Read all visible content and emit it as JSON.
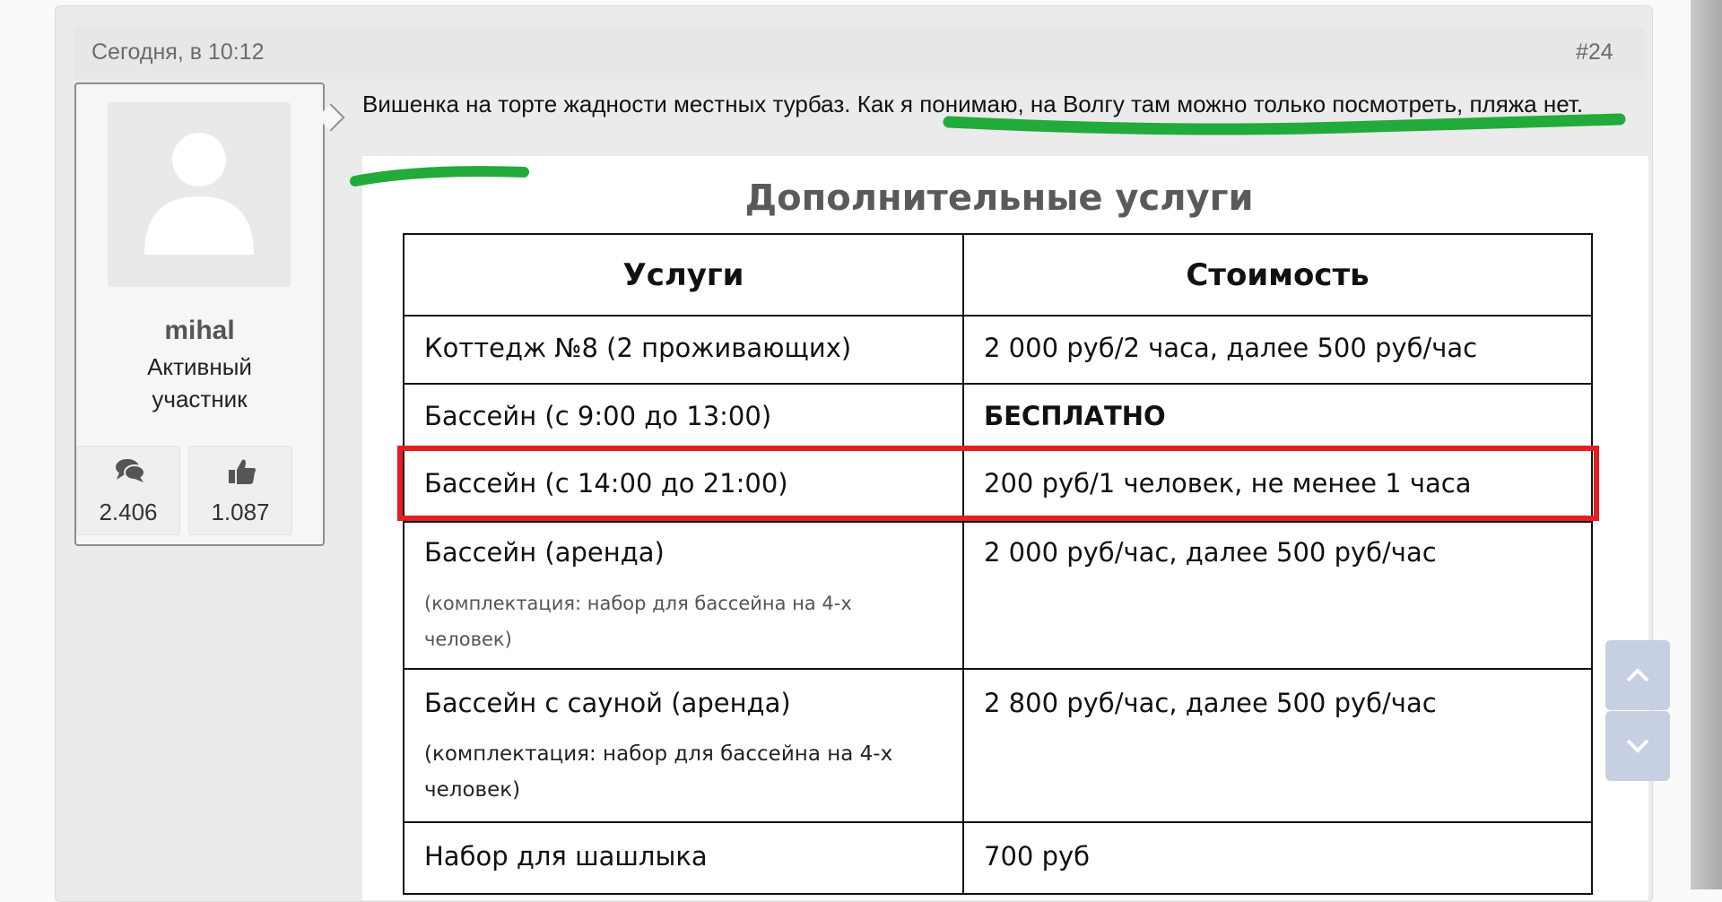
{
  "post": {
    "timestamp": "Сегодня, в 10:12",
    "number": "#24",
    "message": "Вишенка на торте жадности местных турбаз. Как я понимаю, на Волгу там можно только посмотреть, пляжа нет."
  },
  "user": {
    "name": "mihal",
    "role": "Активный участник",
    "messages": "2.406",
    "likes": "1.087"
  },
  "image": {
    "title": "Дополнительные услуги",
    "headers": [
      "Услуги",
      "Стоимость"
    ],
    "rows": [
      {
        "service": "Коттедж №8 (2 проживающих)",
        "note": "",
        "price": "2 000 руб/2 часа, далее 500 руб/час"
      },
      {
        "service": "Бассейн (с 9:00 до 13:00)",
        "note": "",
        "price": "БЕСПЛАТНО"
      },
      {
        "service": "Бассейн (с 14:00 до 21:00)",
        "note": "",
        "price": "200 руб/1 человек, не менее 1 часа"
      },
      {
        "service": "Бассейн (аренда)",
        "note": "(комплектация: набор для бассейна на 4-х человек)",
        "price": "2 000 руб/час, далее 500 руб/час"
      },
      {
        "service": "Бассейн с сауной (аренда)",
        "note": "(комплектация: набор для бассейна на 4-х человек)",
        "price": "2 800 руб/час, далее 500 руб/час"
      },
      {
        "service": "Набор для шашлыка",
        "note": "",
        "price": "700 руб"
      }
    ]
  },
  "colors": {
    "highlight": "#e31e24",
    "underline": "#22aa3a",
    "scroll_button": "#c6d0e2"
  }
}
